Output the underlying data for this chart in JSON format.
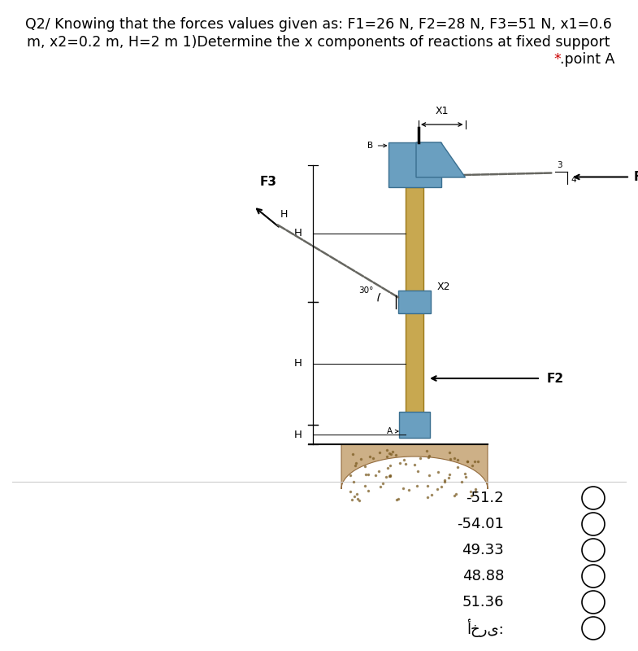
{
  "title_line1": "Q2/ Knowing that the forces values given as: F1=26 N, F2=28 N, F3=51 N, x1=0.6",
  "title_line2": "m, x2=0.2 m, H=2 m 1)Determine the x components of reactions at fixed support",
  "title_line3": "* .point A",
  "options": [
    "-51.2",
    "-54.01",
    "49.33",
    "48.88",
    "51.36",
    "أخرى:"
  ],
  "bg_color": "#ffffff",
  "text_color": "#000000",
  "title_fontsize": 12.5,
  "option_fontsize": 13,
  "pole_color": "#c8a850",
  "pole_edge_color": "#9b7a1a",
  "support_color": "#6a9fc0",
  "support_edge_color": "#3a6f90",
  "ground_color": "#c8a87a",
  "ground_edge_color": "#8a6030",
  "chain_color": "#888880",
  "red_star_color": "#cc0000"
}
